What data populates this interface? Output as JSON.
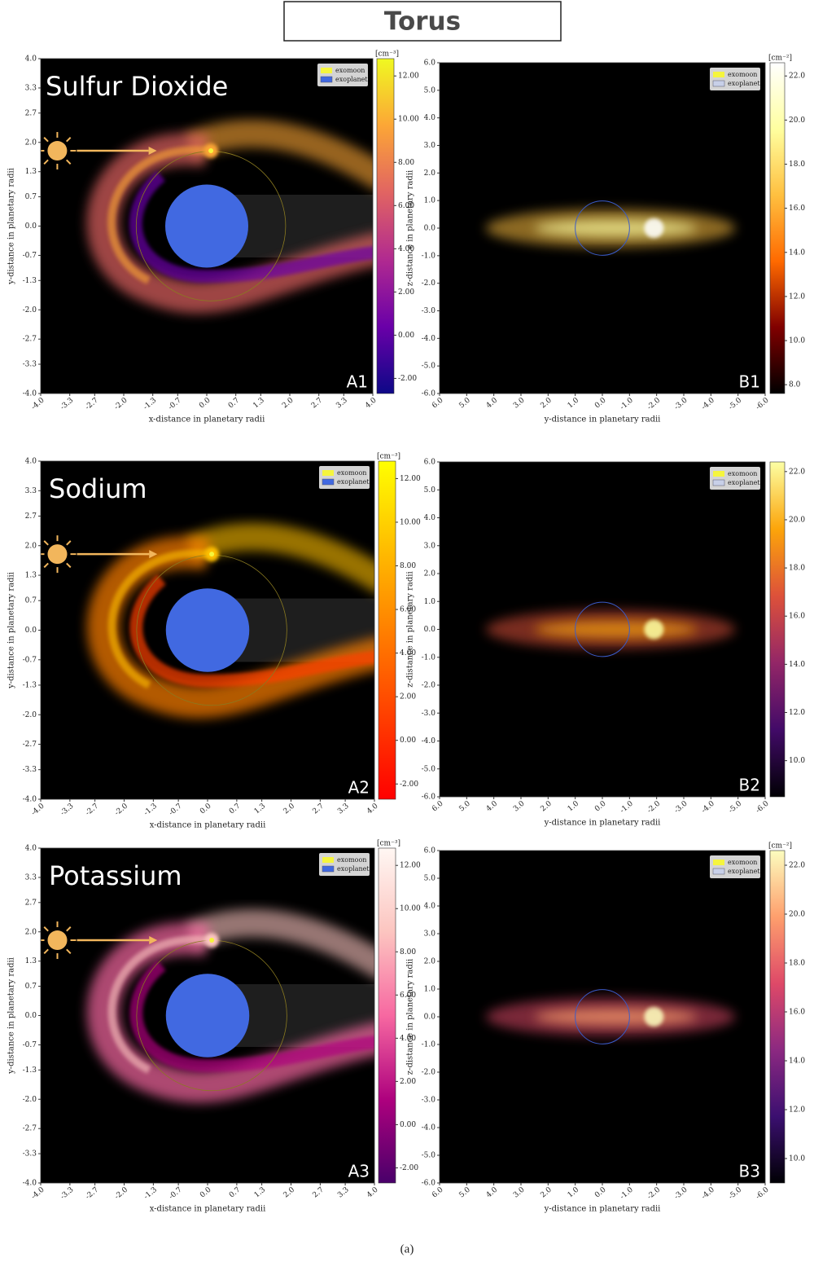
{
  "title": "Torus",
  "caption": "(a)",
  "chart_data": [
    {
      "type": "orbit",
      "name": "Sulfur Dioxide",
      "panel": "A1",
      "xlabel": "x-distance in planetary radii",
      "ylabel": "y-distance in planetary radii",
      "xlim": [
        -4,
        4
      ],
      "ylim": [
        -4,
        4
      ],
      "xticks": [
        {
          "value": -4,
          "label": "-4.0"
        },
        -3.3,
        -2.7,
        {
          "value": -2,
          "label": "-2.0"
        },
        -1.3,
        -0.7,
        {
          "value": 0,
          "label": "0.0"
        },
        0.7,
        1.3,
        {
          "value": 2,
          "label": "2.0"
        },
        2.7,
        3.3,
        {
          "value": 4,
          "label": "4.0"
        }
      ],
      "yticks": [
        {
          "value": -4,
          "label": "-4.0"
        },
        -3.3,
        -2.7,
        {
          "value": -2,
          "label": "-2.0"
        },
        -1.3,
        -0.7,
        {
          "value": 0,
          "label": "0.0"
        },
        0.7,
        1.3,
        {
          "value": 2,
          "label": "2.0"
        },
        2.7,
        3.3,
        {
          "value": 4,
          "label": "4.0"
        }
      ],
      "legend": [
        {
          "name": "exomoon",
          "color": "#f5f53d"
        },
        {
          "name": "exoplanet",
          "color": "#4169e1"
        }
      ],
      "colorbar": {
        "label": "[cm⁻³]",
        "lim": [
          -2.7,
          12.8
        ],
        "colormap": [
          "#0d0887",
          "#6a00a8",
          "#b12a90",
          "#e16462",
          "#fca636",
          "#f0f921"
        ],
        "ticks": [
          {
            "value": -2,
            "label": "-2.00"
          },
          {
            "value": 0,
            "label": "0.00"
          },
          {
            "value": 2,
            "label": "2.00"
          },
          {
            "value": 4,
            "label": "4.00"
          },
          {
            "value": 6,
            "label": "6.00"
          },
          {
            "value": 8,
            "label": "8.00"
          },
          {
            "value": 10,
            "label": "10.00"
          },
          {
            "value": 12,
            "label": "12.00"
          }
        ]
      }
    },
    {
      "type": "profile",
      "panel": "B1",
      "xlabel": "y-distance in planetary radii",
      "ylabel": "z-distance in planetary radii",
      "xlim": [
        6,
        -6
      ],
      "ylim": [
        -6,
        6
      ],
      "xticks": [
        {
          "value": 6,
          "label": "6.0"
        },
        {
          "value": 5,
          "label": "5.0"
        },
        {
          "value": 4,
          "label": "4.0"
        },
        {
          "value": 3,
          "label": "3.0"
        },
        {
          "value": 2,
          "label": "2.0"
        },
        {
          "value": 1,
          "label": "1.0"
        },
        {
          "value": 0,
          "label": "0.0"
        },
        {
          "value": -1,
          "label": "-1.0"
        },
        {
          "value": -2,
          "label": "-2.0"
        },
        {
          "value": -3,
          "label": "-3.0"
        },
        {
          "value": -4,
          "label": "-4.0"
        },
        {
          "value": -5,
          "label": "-5.0"
        },
        {
          "value": -6,
          "label": "-6.0"
        }
      ],
      "yticks": [
        {
          "value": -6,
          "label": "-6.0"
        },
        {
          "value": -5,
          "label": "-5.0"
        },
        {
          "value": -4,
          "label": "-4.0"
        },
        {
          "value": -3,
          "label": "-3.0"
        },
        {
          "value": -2,
          "label": "-2.0"
        },
        {
          "value": -1,
          "label": "-1.0"
        },
        {
          "value": 0,
          "label": "0.0"
        },
        {
          "value": 1,
          "label": "1.0"
        },
        {
          "value": 2,
          "label": "2.0"
        },
        {
          "value": 3,
          "label": "3.0"
        },
        {
          "value": 4,
          "label": "4.0"
        },
        {
          "value": 5,
          "label": "5.0"
        },
        {
          "value": 6,
          "label": "6.0"
        }
      ],
      "legend": [
        {
          "name": "exomoon",
          "color": "#f5f53d"
        },
        {
          "name": "exoplanet",
          "color": "#c8d0e8"
        }
      ],
      "colorbar": {
        "label": "[cm⁻²]",
        "lim": [
          7.6,
          22.6
        ],
        "colormap": [
          "#000000",
          "#800000",
          "#ff6a00",
          "#ffc040",
          "#ffffa0",
          "#ffffff"
        ],
        "ticks": [
          {
            "value": 8,
            "label": "8.0"
          },
          {
            "value": 10,
            "label": "10.0"
          },
          {
            "value": 12,
            "label": "12.0"
          },
          {
            "value": 14,
            "label": "14.0"
          },
          {
            "value": 16,
            "label": "16.0"
          },
          {
            "value": 18,
            "label": "18.0"
          },
          {
            "value": 20,
            "label": "20.0"
          },
          {
            "value": 22,
            "label": "22.0"
          }
        ]
      }
    },
    {
      "type": "orbit",
      "name": "Sodium",
      "panel": "A2",
      "xlabel": "x-distance in planetary radii",
      "ylabel": "y-distance in planetary radii",
      "xlim": [
        -4,
        4
      ],
      "ylim": [
        -4,
        4
      ],
      "xticks": [
        {
          "value": -4,
          "label": "-4.0"
        },
        -3.3,
        -2.7,
        {
          "value": -2,
          "label": "-2.0"
        },
        -1.3,
        -0.7,
        {
          "value": 0,
          "label": "0.0"
        },
        0.7,
        1.3,
        {
          "value": 2,
          "label": "2.0"
        },
        2.7,
        3.3,
        {
          "value": 4,
          "label": "4.0"
        }
      ],
      "yticks": [
        {
          "value": -4,
          "label": "-4.0"
        },
        -3.3,
        -2.7,
        {
          "value": -2,
          "label": "-2.0"
        },
        -1.3,
        -0.7,
        {
          "value": 0,
          "label": "0.0"
        },
        0.7,
        1.3,
        {
          "value": 2,
          "label": "2.0"
        },
        2.7,
        3.3,
        {
          "value": 4,
          "label": "4.0"
        }
      ],
      "legend": [
        {
          "name": "exomoon",
          "color": "#f5f53d"
        },
        {
          "name": "exoplanet",
          "color": "#4169e1"
        }
      ],
      "colorbar": {
        "label": "[cm⁻³]",
        "lim": [
          -2.7,
          12.8
        ],
        "colormap": [
          "#ff0000",
          "#ff4000",
          "#ff8000",
          "#ffbf00",
          "#ffff00"
        ],
        "ticks": [
          {
            "value": -2,
            "label": "-2.00"
          },
          {
            "value": 0,
            "label": "0.00"
          },
          {
            "value": 2,
            "label": "2.00"
          },
          {
            "value": 4,
            "label": "4.00"
          },
          {
            "value": 6,
            "label": "6.00"
          },
          {
            "value": 8,
            "label": "8.00"
          },
          {
            "value": 10,
            "label": "10.00"
          },
          {
            "value": 12,
            "label": "12.00"
          }
        ]
      }
    },
    {
      "type": "profile",
      "panel": "B2",
      "xlabel": "y-distance in planetary radii",
      "ylabel": "z-distance in planetary radii",
      "xlim": [
        6,
        -6
      ],
      "ylim": [
        -6,
        6
      ],
      "xticks": [
        {
          "value": 6,
          "label": "6.0"
        },
        {
          "value": 5,
          "label": "5.0"
        },
        {
          "value": 4,
          "label": "4.0"
        },
        {
          "value": 3,
          "label": "3.0"
        },
        {
          "value": 2,
          "label": "2.0"
        },
        {
          "value": 1,
          "label": "1.0"
        },
        {
          "value": 0,
          "label": "0.0"
        },
        {
          "value": -1,
          "label": "-1.0"
        },
        {
          "value": -2,
          "label": "-2.0"
        },
        {
          "value": -3,
          "label": "-3.0"
        },
        {
          "value": -4,
          "label": "-4.0"
        },
        {
          "value": -5,
          "label": "-5.0"
        },
        {
          "value": -6,
          "label": "-6.0"
        }
      ],
      "yticks": [
        {
          "value": -6,
          "label": "-6.0"
        },
        {
          "value": -5,
          "label": "-5.0"
        },
        {
          "value": -4,
          "label": "-4.0"
        },
        {
          "value": -3,
          "label": "-3.0"
        },
        {
          "value": -2,
          "label": "-2.0"
        },
        {
          "value": -1,
          "label": "-1.0"
        },
        {
          "value": 0,
          "label": "0.0"
        },
        {
          "value": 1,
          "label": "1.0"
        },
        {
          "value": 2,
          "label": "2.0"
        },
        {
          "value": 3,
          "label": "3.0"
        },
        {
          "value": 4,
          "label": "4.0"
        },
        {
          "value": 5,
          "label": "5.0"
        },
        {
          "value": 6,
          "label": "6.0"
        }
      ],
      "legend": [
        {
          "name": "exomoon",
          "color": "#f5f53d"
        },
        {
          "name": "exoplanet",
          "color": "#c8d0e8"
        }
      ],
      "colorbar": {
        "lim": [
          8.5,
          22.4
        ],
        "colormap": [
          "#000004",
          "#420a68",
          "#932667",
          "#dd513a",
          "#fca50a",
          "#fcffa4"
        ],
        "ticks": [
          {
            "value": 10,
            "label": "10.0"
          },
          {
            "value": 12,
            "label": "12.0"
          },
          {
            "value": 14,
            "label": "14.0"
          },
          {
            "value": 16,
            "label": "16.0"
          },
          {
            "value": 18,
            "label": "18.0"
          },
          {
            "value": 20,
            "label": "20.0"
          },
          {
            "value": 22,
            "label": "22.0"
          }
        ]
      }
    },
    {
      "type": "orbit",
      "name": "Potassium",
      "panel": "A3",
      "xlabel": "x-distance in planetary radii",
      "ylabel": "y-distance in planetary radii",
      "xlim": [
        -4,
        4
      ],
      "ylim": [
        -4,
        4
      ],
      "xticks": [
        {
          "value": -4,
          "label": "-4.0"
        },
        -3.3,
        -2.7,
        {
          "value": -2,
          "label": "-2.0"
        },
        -1.3,
        -0.7,
        {
          "value": 0,
          "label": "0.0"
        },
        0.7,
        1.3,
        {
          "value": 2,
          "label": "2.0"
        },
        2.7,
        3.3,
        {
          "value": 4,
          "label": "4.0"
        }
      ],
      "yticks": [
        {
          "value": -4,
          "label": "-4.0"
        },
        -3.3,
        -2.7,
        {
          "value": -2,
          "label": "-2.0"
        },
        -1.3,
        -0.7,
        {
          "value": 0,
          "label": "0.0"
        },
        0.7,
        1.3,
        {
          "value": 2,
          "label": "2.0"
        },
        2.7,
        3.3,
        {
          "value": 4,
          "label": "4.0"
        }
      ],
      "legend": [
        {
          "name": "exomoon",
          "color": "#f5f53d"
        },
        {
          "name": "exoplanet",
          "color": "#4169e1"
        }
      ],
      "colorbar": {
        "label": "[cm⁻³]",
        "lim": [
          -2.7,
          12.8
        ],
        "colormap": [
          "#49006a",
          "#ae017e",
          "#f768a1",
          "#fcc5c0",
          "#fff7f3"
        ],
        "ticks": [
          {
            "value": -2,
            "label": "-2.00"
          },
          {
            "value": 0,
            "label": "0.00"
          },
          {
            "value": 2,
            "label": "2.00"
          },
          {
            "value": 4,
            "label": "4.00"
          },
          {
            "value": 6,
            "label": "6.00"
          },
          {
            "value": 8,
            "label": "8.00"
          },
          {
            "value": 10,
            "label": "10.00"
          },
          {
            "value": 12,
            "label": "12.00"
          }
        ]
      }
    },
    {
      "type": "profile",
      "panel": "B3",
      "xlabel": "y-distance in planetary radii",
      "ylabel": "z-distance in planetary radii",
      "xlim": [
        6,
        -6
      ],
      "ylim": [
        -6,
        6
      ],
      "xticks": [
        {
          "value": 6,
          "label": "6.0"
        },
        {
          "value": 5,
          "label": "5.0"
        },
        {
          "value": 4,
          "label": "4.0"
        },
        {
          "value": 3,
          "label": "3.0"
        },
        {
          "value": 2,
          "label": "2.0"
        },
        {
          "value": 1,
          "label": "1.0"
        },
        {
          "value": 0,
          "label": "0.0"
        },
        {
          "value": -1,
          "label": "-1.0"
        },
        {
          "value": -2,
          "label": "-2.0"
        },
        {
          "value": -3,
          "label": "-3.0"
        },
        {
          "value": -4,
          "label": "-4.0"
        },
        {
          "value": -5,
          "label": "-5.0"
        },
        {
          "value": -6,
          "label": "-6.0"
        }
      ],
      "yticks": [
        {
          "value": -6,
          "label": "-6.0"
        },
        {
          "value": -5,
          "label": "-5.0"
        },
        {
          "value": -4,
          "label": "-4.0"
        },
        {
          "value": -3,
          "label": "-3.0"
        },
        {
          "value": -2,
          "label": "-2.0"
        },
        {
          "value": -1,
          "label": "-1.0"
        },
        {
          "value": 0,
          "label": "0.0"
        },
        {
          "value": 1,
          "label": "1.0"
        },
        {
          "value": 2,
          "label": "2.0"
        },
        {
          "value": 3,
          "label": "3.0"
        },
        {
          "value": 4,
          "label": "4.0"
        },
        {
          "value": 5,
          "label": "5.0"
        },
        {
          "value": 6,
          "label": "6.0"
        }
      ],
      "legend": [
        {
          "name": "exomoon",
          "color": "#f5f53d"
        },
        {
          "name": "exoplanet",
          "color": "#c8d0e8"
        }
      ],
      "colorbar": {
        "label": "[cm⁻²]",
        "lim": [
          9.0,
          22.6
        ],
        "colormap": [
          "#000004",
          "#3b0f70",
          "#8c2981",
          "#de4968",
          "#fe9f6d",
          "#fcfdbf"
        ],
        "ticks": [
          {
            "value": 10,
            "label": "10.0"
          },
          {
            "value": 12,
            "label": "12.0"
          },
          {
            "value": 14,
            "label": "14.0"
          },
          {
            "value": 16,
            "label": "16.0"
          },
          {
            "value": 18,
            "label": "18.0"
          },
          {
            "value": 20,
            "label": "20.0"
          },
          {
            "value": 22,
            "label": "22.0"
          }
        ]
      }
    }
  ]
}
